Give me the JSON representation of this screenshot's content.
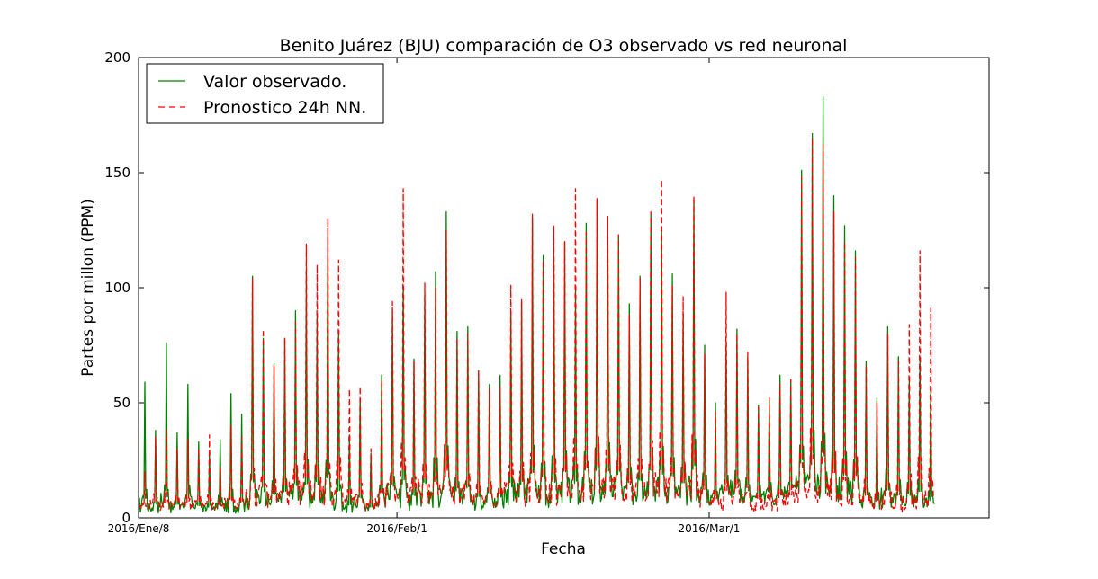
{
  "chart_data": {
    "type": "line",
    "title": "Benito Juárez (BJU) comparación de O3 observado vs red neuronal",
    "xlabel": "Fecha",
    "ylabel": "Partes por millon (PPM)",
    "ylim": [
      0,
      200
    ],
    "yticks": [
      "0",
      "50",
      "100",
      "150",
      "200"
    ],
    "xlim": [
      "2016-01-08",
      "2016-03-27"
    ],
    "xticks": [
      {
        "date": "2016-01-08",
        "label": "2016/Ene/8"
      },
      {
        "date": "2016-02-01",
        "label": "2016/Feb/1"
      },
      {
        "date": "2016-03-01",
        "label": "2016/Mar/1"
      }
    ],
    "legend_position": "top-left",
    "grid": false,
    "series": [
      {
        "name": "Valor observado.",
        "color": "#008000",
        "style": "solid",
        "x_start": "2016-01-08",
        "x_end": "2016-03-25",
        "daily_peaks": [
          59,
          38,
          76,
          37,
          58,
          33,
          28,
          34,
          54,
          45,
          105,
          78,
          67,
          78,
          90,
          107,
          88,
          124,
          80,
          36,
          52,
          28,
          62,
          90,
          101,
          69,
          97,
          107,
          133,
          81,
          83,
          64,
          58,
          62,
          89,
          94,
          130,
          114,
          112,
          120,
          99,
          128,
          138,
          131,
          123,
          93,
          105,
          132,
          124,
          106,
          89,
          138,
          75,
          50,
          76,
          82,
          70,
          49,
          52,
          62,
          60,
          151,
          167,
          183,
          140,
          127,
          116,
          68,
          52,
          83,
          70,
          60,
          70,
          57
        ],
        "daily_lows": [
          2,
          2,
          3,
          2,
          3,
          2,
          2,
          3,
          2,
          2,
          3,
          4,
          3,
          3,
          4,
          3,
          5,
          4,
          3,
          2,
          3,
          2,
          4,
          5,
          4,
          3,
          5,
          4,
          6,
          4,
          5,
          3,
          4,
          3,
          5,
          4,
          6,
          5,
          4,
          6,
          5,
          6,
          5,
          7,
          6,
          5,
          6,
          8,
          7,
          6,
          5,
          7,
          6,
          5,
          8,
          7,
          6,
          5,
          6,
          5,
          8,
          9,
          7,
          8,
          7,
          6,
          5,
          4,
          3,
          4,
          3,
          4,
          3,
          2
        ]
      },
      {
        "name": "Pronostico 24h NN.",
        "color": "#ff0000",
        "style": "dashed",
        "x_start": "2016-01-08",
        "x_end": "2016-03-26",
        "daily_peaks": [
          20,
          35,
          38,
          30,
          34,
          30,
          36,
          22,
          40,
          35,
          104,
          82,
          66,
          78,
          85,
          119,
          110,
          130,
          112,
          56,
          57,
          30,
          60,
          94,
          143,
          68,
          102,
          100,
          125,
          78,
          80,
          64,
          56,
          57,
          101,
          95,
          132,
          112,
          127,
          120,
          143,
          124,
          139,
          131,
          123,
          88,
          104,
          133,
          147,
          101,
          96,
          140,
          71,
          46,
          98,
          80,
          72,
          48,
          52,
          58,
          60,
          148,
          165,
          162,
          133,
          120,
          113,
          66,
          50,
          80,
          68,
          84,
          116,
          91
        ],
        "daily_lows": [
          3,
          4,
          3,
          4,
          3,
          4,
          3,
          3,
          4,
          3,
          4,
          5,
          4,
          5,
          6,
          5,
          6,
          5,
          4,
          3,
          4,
          3,
          4,
          5,
          6,
          5,
          6,
          5,
          6,
          5,
          6,
          4,
          5,
          4,
          6,
          5,
          6,
          6,
          5,
          7,
          6,
          7,
          6,
          8,
          7,
          6,
          7,
          7,
          8,
          7,
          6,
          8,
          4,
          3,
          2,
          3,
          2,
          3,
          2,
          3,
          4,
          6,
          5,
          6,
          5,
          4,
          4,
          3,
          2,
          3,
          2,
          3,
          2,
          2
        ]
      }
    ]
  }
}
